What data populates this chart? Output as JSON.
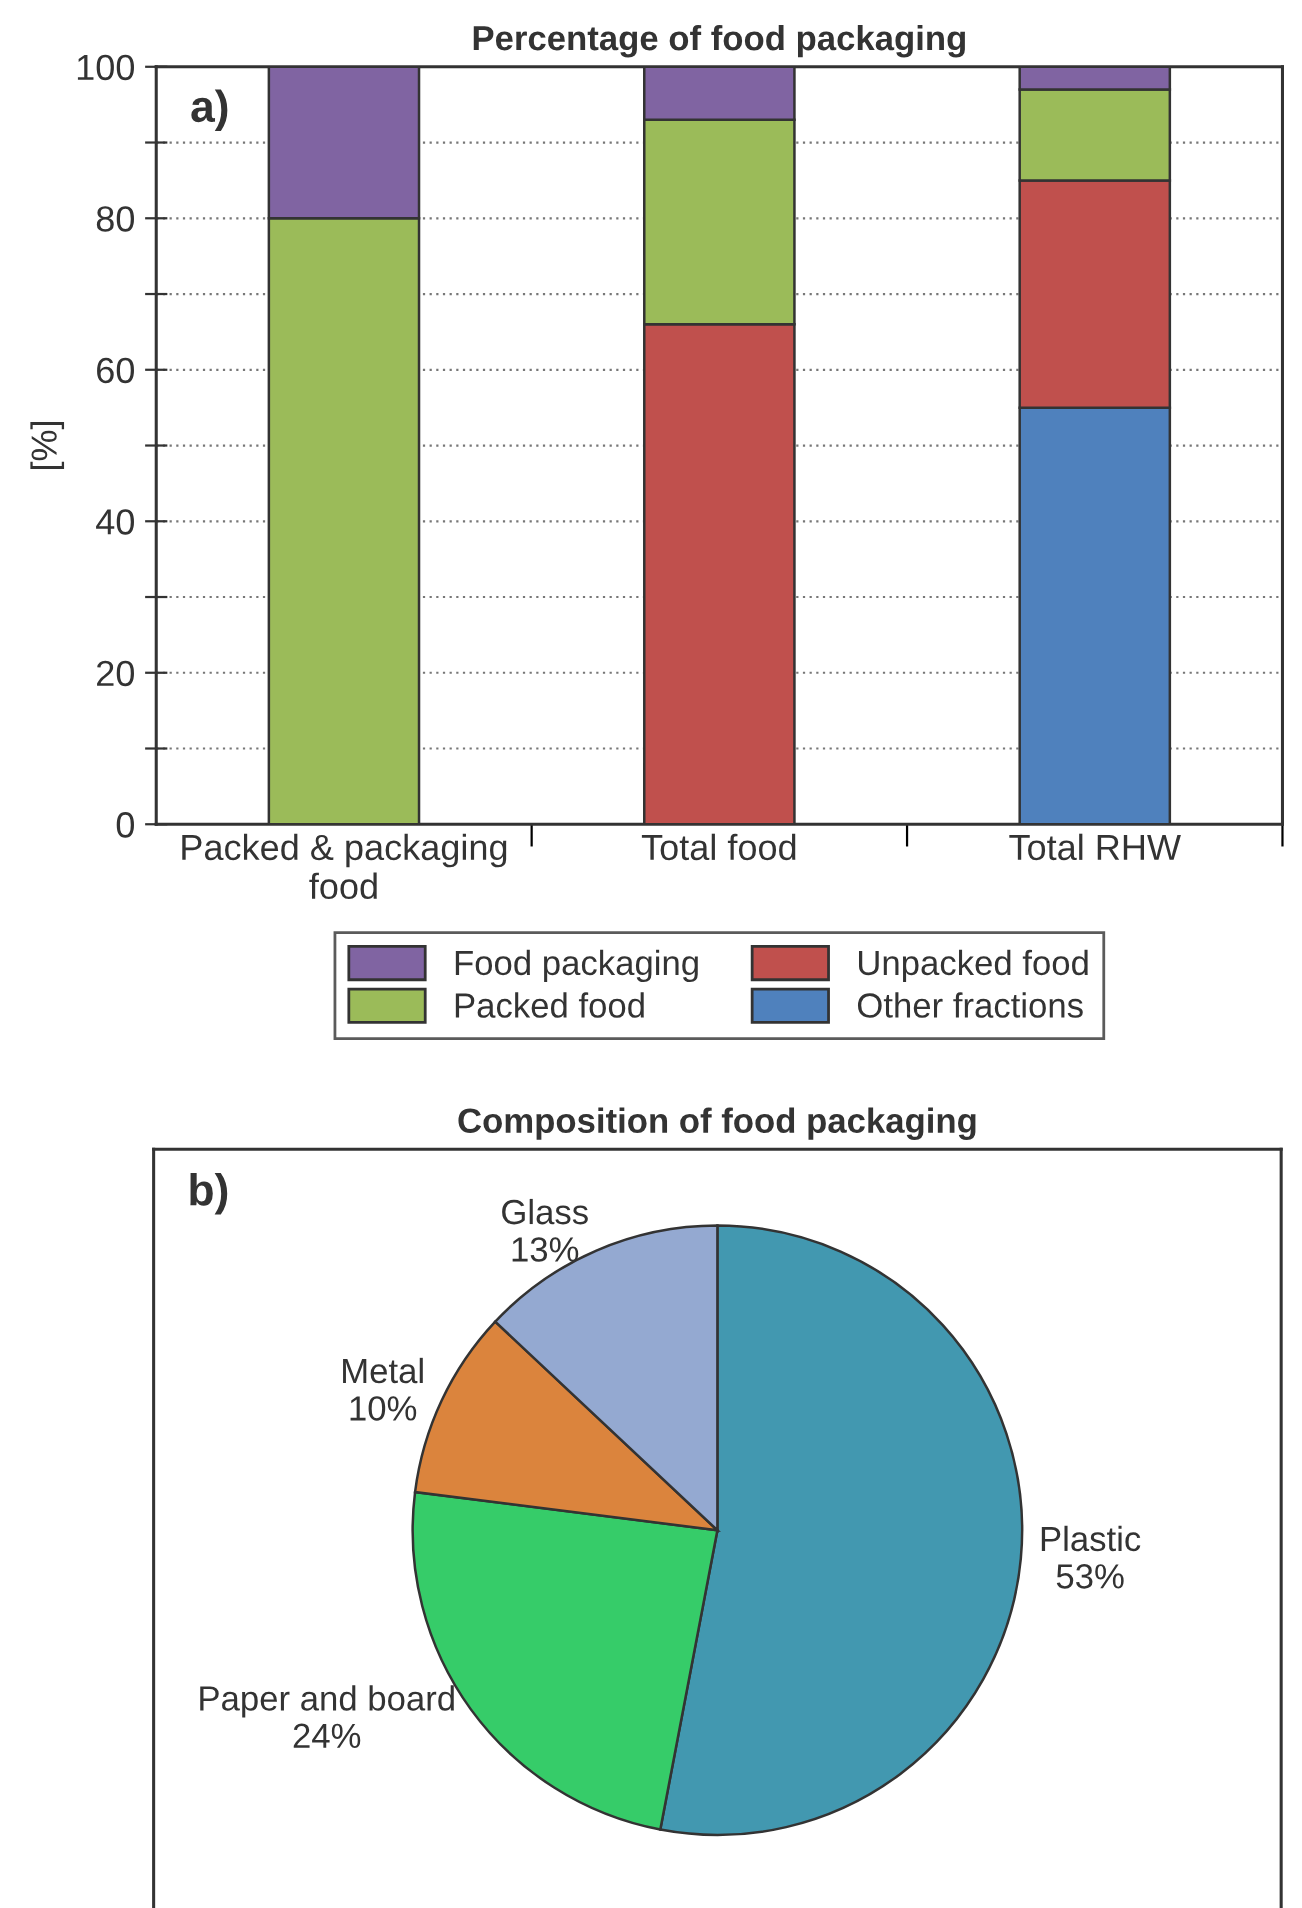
{
  "chart_data": [
    {
      "type": "bar",
      "title": "Percentage of food packaging",
      "ylabel": "[%]",
      "annotations": [
        "a)"
      ],
      "stacked": true,
      "categories": [
        "Packed & packaging\nfood",
        "Total food",
        "Total RHW"
      ],
      "series": [
        {
          "name": "Other fractions",
          "color": "#4f81bd",
          "values": [
            0,
            0,
            55
          ]
        },
        {
          "name": "Unpacked food",
          "color": "#c0504d",
          "values": [
            0,
            66,
            30
          ]
        },
        {
          "name": "Packed food",
          "color": "#9bbb59",
          "values": [
            80,
            27,
            12
          ]
        },
        {
          "name": "Food packaging",
          "color": "#8064a2",
          "values": [
            20,
            7,
            3
          ]
        }
      ],
      "ylim": [
        0,
        100
      ],
      "yticks": [
        0,
        {
          "value": 10,
          "label": null
        },
        20,
        {
          "value": 30,
          "label": null
        },
        40,
        {
          "value": 50,
          "label": null
        },
        60,
        {
          "value": 70,
          "label": null
        },
        80,
        {
          "value": 90,
          "label": null
        },
        100
      ],
      "grid": "y",
      "legend": "bottom"
    },
    {
      "type": "pie",
      "title": "Composition of food packaging",
      "annotations": [
        "b)"
      ],
      "categories": [
        "Plastic",
        "Paper and board",
        "Metal",
        "Glass"
      ],
      "values": [
        53,
        24,
        10,
        13
      ],
      "value_labels": [
        "53%",
        "24%",
        "10%",
        "13%"
      ],
      "colors": [
        "#4298b0",
        "#36cc69",
        "#db843d",
        "#94a9d1"
      ]
    }
  ]
}
